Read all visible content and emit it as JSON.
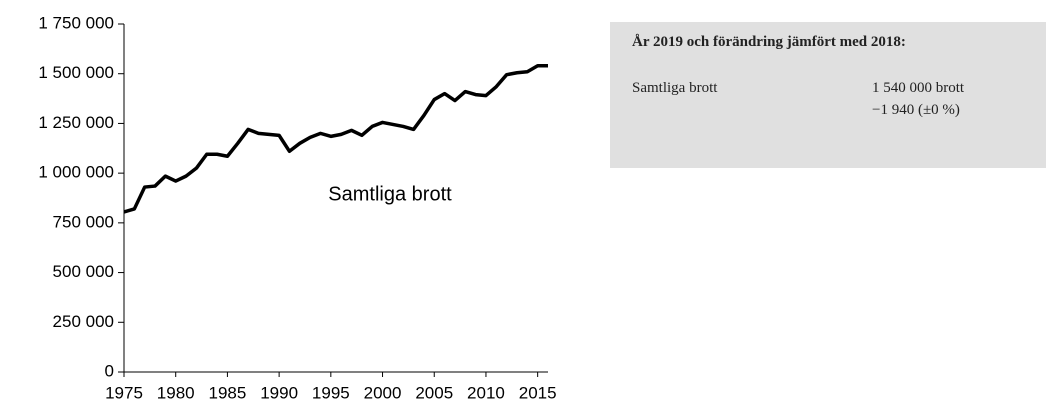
{
  "chart_data": {
    "type": "line",
    "x": [
      1975,
      1976,
      1977,
      1978,
      1979,
      1980,
      1981,
      1982,
      1983,
      1984,
      1985,
      1986,
      1987,
      1988,
      1989,
      1990,
      1991,
      1992,
      1993,
      1994,
      1995,
      1996,
      1997,
      1998,
      1999,
      2000,
      2001,
      2002,
      2003,
      2004,
      2005,
      2006,
      2007,
      2008,
      2009,
      2010,
      2011,
      2012,
      2013,
      2014,
      2015,
      2016
    ],
    "series": [
      {
        "name": "Samtliga brott",
        "color": "#000000",
        "values": [
          805000,
          820000,
          930000,
          935000,
          985000,
          960000,
          985000,
          1025000,
          1095000,
          1095000,
          1085000,
          1150000,
          1220000,
          1200000,
          1195000,
          1190000,
          1110000,
          1150000,
          1180000,
          1200000,
          1185000,
          1195000,
          1215000,
          1190000,
          1235000,
          1255000,
          1245000,
          1235000,
          1220000,
          1290000,
          1370000,
          1400000,
          1365000,
          1410000,
          1395000,
          1390000,
          1435000,
          1495000,
          1505000,
          1510000,
          1540000,
          1540000
        ]
      }
    ],
    "annotations": [
      "Samtliga brott"
    ],
    "xlim": [
      1975,
      2016
    ],
    "xticks": [
      1975,
      1980,
      1985,
      1990,
      1995,
      2000,
      2005,
      2010,
      2015
    ],
    "ylim": [
      0,
      1750000
    ],
    "yticks": [
      0,
      {
        "value": 250000,
        "label": "250 000"
      },
      {
        "value": 500000,
        "label": "500 000"
      },
      {
        "value": 750000,
        "label": "750 000"
      },
      {
        "value": 1000000,
        "label": "1 000 000"
      },
      {
        "value": 1250000,
        "label": "1 250 000"
      },
      {
        "value": 1500000,
        "label": "1 500 000"
      },
      {
        "value": 1750000,
        "label": "1 750 000"
      }
    ],
    "grid": false
  },
  "info_box": {
    "title": "År 2019 och förändring jämfört med 2018:",
    "rows": [
      {
        "label": "Samtliga brott",
        "value": "1 540 000 brott",
        "change": "−1 940 (±0 %)"
      }
    ]
  }
}
